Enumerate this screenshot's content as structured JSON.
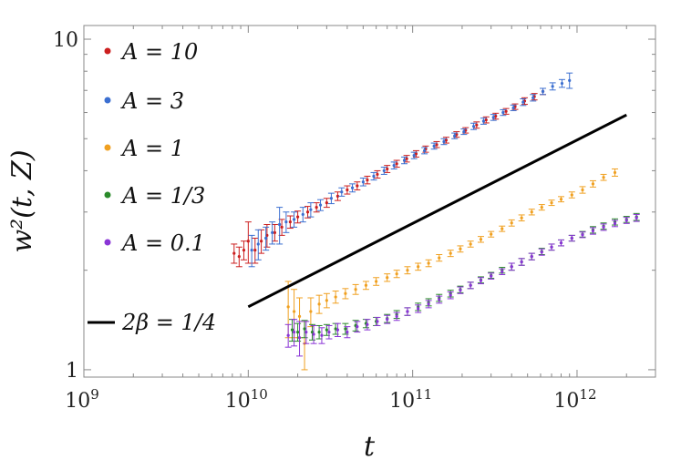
{
  "chart_data": {
    "type": "scatter",
    "x_scale": "log",
    "y_scale": "log",
    "xlabel": "t",
    "ylabel": "w²(t, Z)",
    "xlim": [
      1000000000.0,
      3000000000000.0
    ],
    "ylim": [
      0.95,
      11
    ],
    "x_ticks": [
      {
        "value": 1000000000.0,
        "base": "10",
        "exp": "9"
      },
      {
        "value": 10000000000.0,
        "base": "10",
        "exp": "10"
      },
      {
        "value": 100000000000.0,
        "base": "10",
        "exp": "11"
      },
      {
        "value": 1000000000000.0,
        "base": "10",
        "exp": "12"
      }
    ],
    "y_ticks": [
      {
        "value": 1,
        "label": "1"
      },
      {
        "value": 10,
        "label": "10"
      }
    ],
    "legend_position": "top-left",
    "series": [
      {
        "name": "A = 10",
        "color": "#cc1f1f",
        "points": [
          [
            8200000000.0,
            2.25
          ],
          [
            8800000000.0,
            2.2
          ],
          [
            9400000000.0,
            2.3
          ],
          [
            10000000000.0,
            2.45
          ],
          [
            11000000000.0,
            2.3
          ],
          [
            12000000000.0,
            2.45
          ],
          [
            13000000000.0,
            2.55
          ],
          [
            14500000000.0,
            2.6
          ],
          [
            16000000000.0,
            2.7
          ],
          [
            18000000000.0,
            2.8
          ],
          [
            20000000000.0,
            2.9
          ],
          [
            23000000000.0,
            3.0
          ],
          [
            26000000000.0,
            3.1
          ],
          [
            30000000000.0,
            3.2
          ],
          [
            35000000000.0,
            3.35
          ],
          [
            40000000000.0,
            3.5
          ],
          [
            46000000000.0,
            3.6
          ],
          [
            53000000000.0,
            3.75
          ],
          [
            61000000000.0,
            3.9
          ],
          [
            70000000000.0,
            4.05
          ],
          [
            80000000000.0,
            4.2
          ],
          [
            92000000000.0,
            4.35
          ],
          [
            105000000000.0,
            4.5
          ],
          [
            120000000000.0,
            4.65
          ],
          [
            140000000000.0,
            4.8
          ],
          [
            160000000000.0,
            4.95
          ],
          [
            185000000000.0,
            5.15
          ],
          [
            210000000000.0,
            5.3
          ],
          [
            245000000000.0,
            5.5
          ],
          [
            280000000000.0,
            5.7
          ],
          [
            320000000000.0,
            5.85
          ],
          [
            370000000000.0,
            6.05
          ],
          [
            420000000000.0,
            6.25
          ],
          [
            480000000000.0,
            6.5
          ],
          [
            550000000000.0,
            6.7
          ],
          [
            620000000000.0,
            6.95
          ]
        ],
        "errors": [
          0.15,
          0.15,
          0.15,
          0.35,
          0.2,
          0.2,
          0.2,
          0.15,
          0.15,
          0.12,
          0.12,
          0.12,
          0.1,
          0.1,
          0.1,
          0.1,
          0.1,
          0.1,
          0.1,
          0.1,
          0.1,
          0.1,
          0.1,
          0.1,
          0.1,
          0.1,
          0.1,
          0.1,
          0.12,
          0.12,
          0.12,
          0.12,
          0.12,
          0.15,
          0.15,
          0.15
        ]
      },
      {
        "name": "A = 3",
        "color": "#3b6fd1",
        "points": [
          [
            10500000000.0,
            2.3
          ],
          [
            11500000000.0,
            2.4
          ],
          [
            12800000000.0,
            2.5
          ],
          [
            14000000000.0,
            2.6
          ],
          [
            15500000000.0,
            2.75
          ],
          [
            17000000000.0,
            2.8
          ],
          [
            19000000000.0,
            2.85
          ],
          [
            21500000000.0,
            2.95
          ],
          [
            24000000000.0,
            3.05
          ],
          [
            27500000000.0,
            3.15
          ],
          [
            32000000000.0,
            3.3
          ],
          [
            37000000000.0,
            3.45
          ],
          [
            43000000000.0,
            3.55
          ],
          [
            50000000000.0,
            3.7
          ],
          [
            58000000000.0,
            3.85
          ],
          [
            67000000000.0,
            4.0
          ],
          [
            77000000000.0,
            4.15
          ],
          [
            89000000000.0,
            4.3
          ],
          [
            102000000000.0,
            4.45
          ],
          [
            118000000000.0,
            4.6
          ],
          [
            135000000000.0,
            4.75
          ],
          [
            155000000000.0,
            4.9
          ],
          [
            180000000000.0,
            5.1
          ],
          [
            205000000000.0,
            5.25
          ],
          [
            235000000000.0,
            5.45
          ],
          [
            270000000000.0,
            5.65
          ],
          [
            310000000000.0,
            5.8
          ],
          [
            355000000000.0,
            6.0
          ],
          [
            410000000000.0,
            6.2
          ],
          [
            470000000000.0,
            6.45
          ],
          [
            540000000000.0,
            6.65
          ],
          [
            620000000000.0,
            6.95
          ],
          [
            710000000000.0,
            7.2
          ],
          [
            810000000000.0,
            7.35
          ],
          [
            900000000000.0,
            7.5
          ]
        ],
        "errors": [
          0.25,
          0.25,
          0.2,
          0.2,
          0.35,
          0.2,
          0.15,
          0.15,
          0.15,
          0.12,
          0.12,
          0.1,
          0.1,
          0.1,
          0.1,
          0.1,
          0.1,
          0.1,
          0.1,
          0.1,
          0.1,
          0.1,
          0.1,
          0.1,
          0.12,
          0.12,
          0.12,
          0.12,
          0.12,
          0.15,
          0.15,
          0.15,
          0.18,
          0.2,
          0.4
        ]
      },
      {
        "name": "A = 1",
        "color": "#f0a020",
        "points": [
          [
            17500000000.0,
            1.55
          ],
          [
            19000000000.0,
            1.5
          ],
          [
            20500000000.0,
            1.45
          ],
          [
            22000000000.0,
            1.2
          ],
          [
            24000000000.0,
            1.5
          ],
          [
            27000000000.0,
            1.58
          ],
          [
            30000000000.0,
            1.62
          ],
          [
            34000000000.0,
            1.66
          ],
          [
            39000000000.0,
            1.7
          ],
          [
            45000000000.0,
            1.75
          ],
          [
            52000000000.0,
            1.8
          ],
          [
            60000000000.0,
            1.85
          ],
          [
            70000000000.0,
            1.9
          ],
          [
            80000000000.0,
            1.95
          ],
          [
            93000000000.0,
            2.0
          ],
          [
            108000000000.0,
            2.05
          ],
          [
            125000000000.0,
            2.1
          ],
          [
            145000000000.0,
            2.18
          ],
          [
            170000000000.0,
            2.25
          ],
          [
            195000000000.0,
            2.32
          ],
          [
            225000000000.0,
            2.4
          ],
          [
            260000000000.0,
            2.48
          ],
          [
            300000000000.0,
            2.57
          ],
          [
            350000000000.0,
            2.67
          ],
          [
            400000000000.0,
            2.78
          ],
          [
            460000000000.0,
            2.88
          ],
          [
            530000000000.0,
            3.0
          ],
          [
            610000000000.0,
            3.1
          ],
          [
            700000000000.0,
            3.2
          ],
          [
            800000000000.0,
            3.28
          ],
          [
            930000000000.0,
            3.38
          ],
          [
            1080000000000.0,
            3.5
          ],
          [
            1250000000000.0,
            3.65
          ],
          [
            1450000000000.0,
            3.82
          ],
          [
            1700000000000.0,
            3.95
          ]
        ],
        "errors": [
          0.3,
          0.25,
          0.2,
          0.2,
          0.15,
          0.1,
          0.08,
          0.07,
          0.06,
          0.06,
          0.05,
          0.05,
          0.05,
          0.05,
          0.05,
          0.05,
          0.05,
          0.05,
          0.05,
          0.05,
          0.05,
          0.05,
          0.05,
          0.05,
          0.06,
          0.06,
          0.06,
          0.06,
          0.06,
          0.06,
          0.07,
          0.08,
          0.08,
          0.08,
          0.1
        ]
      },
      {
        "name": "A = 1/3",
        "color": "#2a8a2a",
        "points": [
          [
            18500000000.0,
            1.32
          ],
          [
            20000000000.0,
            1.3
          ],
          [
            22000000000.0,
            1.33
          ],
          [
            24500000000.0,
            1.3
          ],
          [
            27000000000.0,
            1.3
          ],
          [
            30000000000.0,
            1.32
          ],
          [
            34000000000.0,
            1.33
          ],
          [
            39000000000.0,
            1.33
          ],
          [
            45000000000.0,
            1.36
          ],
          [
            52000000000.0,
            1.38
          ],
          [
            60000000000.0,
            1.4
          ],
          [
            70000000000.0,
            1.43
          ],
          [
            80000000000.0,
            1.47
          ],
          [
            93000000000.0,
            1.5
          ],
          [
            108000000000.0,
            1.55
          ],
          [
            125000000000.0,
            1.6
          ],
          [
            145000000000.0,
            1.65
          ],
          [
            170000000000.0,
            1.7
          ],
          [
            195000000000.0,
            1.75
          ],
          [
            225000000000.0,
            1.8
          ],
          [
            260000000000.0,
            1.87
          ],
          [
            300000000000.0,
            1.93
          ],
          [
            350000000000.0,
            2.0
          ],
          [
            400000000000.0,
            2.05
          ],
          [
            460000000000.0,
            2.12
          ],
          [
            530000000000.0,
            2.2
          ],
          [
            610000000000.0,
            2.28
          ],
          [
            700000000000.0,
            2.35
          ],
          [
            800000000000.0,
            2.42
          ],
          [
            930000000000.0,
            2.5
          ],
          [
            1080000000000.0,
            2.57
          ],
          [
            1250000000000.0,
            2.65
          ],
          [
            1450000000000.0,
            2.72
          ],
          [
            1700000000000.0,
            2.8
          ],
          [
            2000000000000.0,
            2.85
          ],
          [
            2300000000000.0,
            2.9
          ]
        ],
        "errors": [
          0.1,
          0.08,
          0.08,
          0.07,
          0.06,
          0.05,
          0.05,
          0.05,
          0.05,
          0.04,
          0.04,
          0.04,
          0.04,
          0.04,
          0.04,
          0.04,
          0.04,
          0.04,
          0.04,
          0.04,
          0.04,
          0.04,
          0.04,
          0.05,
          0.05,
          0.05,
          0.05,
          0.05,
          0.05,
          0.05,
          0.05,
          0.06,
          0.06,
          0.06,
          0.06,
          0.07
        ]
      },
      {
        "name": "A = 0.1",
        "color": "#8a35d6",
        "points": [
          [
            17500000000.0,
            1.27
          ],
          [
            19000000000.0,
            1.3
          ],
          [
            20500000000.0,
            1.25
          ],
          [
            22500000000.0,
            1.3
          ],
          [
            25000000000.0,
            1.28
          ],
          [
            28000000000.0,
            1.27
          ],
          [
            31000000000.0,
            1.3
          ],
          [
            35000000000.0,
            1.32
          ],
          [
            40000000000.0,
            1.3
          ],
          [
            46000000000.0,
            1.35
          ],
          [
            53000000000.0,
            1.37
          ],
          [
            61000000000.0,
            1.4
          ],
          [
            70000000000.0,
            1.42
          ],
          [
            80000000000.0,
            1.45
          ],
          [
            93000000000.0,
            1.5
          ],
          [
            108000000000.0,
            1.53
          ],
          [
            125000000000.0,
            1.58
          ],
          [
            145000000000.0,
            1.63
          ],
          [
            170000000000.0,
            1.68
          ],
          [
            195000000000.0,
            1.74
          ],
          [
            225000000000.0,
            1.8
          ],
          [
            260000000000.0,
            1.86
          ],
          [
            300000000000.0,
            1.92
          ],
          [
            350000000000.0,
            1.98
          ],
          [
            400000000000.0,
            2.05
          ],
          [
            460000000000.0,
            2.12
          ],
          [
            530000000000.0,
            2.2
          ],
          [
            610000000000.0,
            2.27
          ],
          [
            700000000000.0,
            2.35
          ],
          [
            800000000000.0,
            2.42
          ],
          [
            930000000000.0,
            2.5
          ],
          [
            1080000000000.0,
            2.56
          ],
          [
            1250000000000.0,
            2.63
          ],
          [
            1450000000000.0,
            2.7
          ],
          [
            1700000000000.0,
            2.77
          ],
          [
            2000000000000.0,
            2.83
          ],
          [
            2300000000000.0,
            2.88
          ]
        ],
        "errors": [
          0.1,
          0.12,
          0.15,
          0.1,
          0.08,
          0.07,
          0.06,
          0.06,
          0.05,
          0.05,
          0.05,
          0.04,
          0.04,
          0.04,
          0.04,
          0.04,
          0.04,
          0.04,
          0.04,
          0.04,
          0.04,
          0.04,
          0.04,
          0.04,
          0.05,
          0.05,
          0.05,
          0.05,
          0.05,
          0.05,
          0.05,
          0.05,
          0.06,
          0.06,
          0.06,
          0.06,
          0.07
        ]
      }
    ],
    "reference_line": {
      "name": "2β = 1/4",
      "color": "#000000",
      "points": [
        [
          10000000000.0,
          1.55
        ],
        [
          2000000000000.0,
          5.9
        ]
      ]
    }
  }
}
